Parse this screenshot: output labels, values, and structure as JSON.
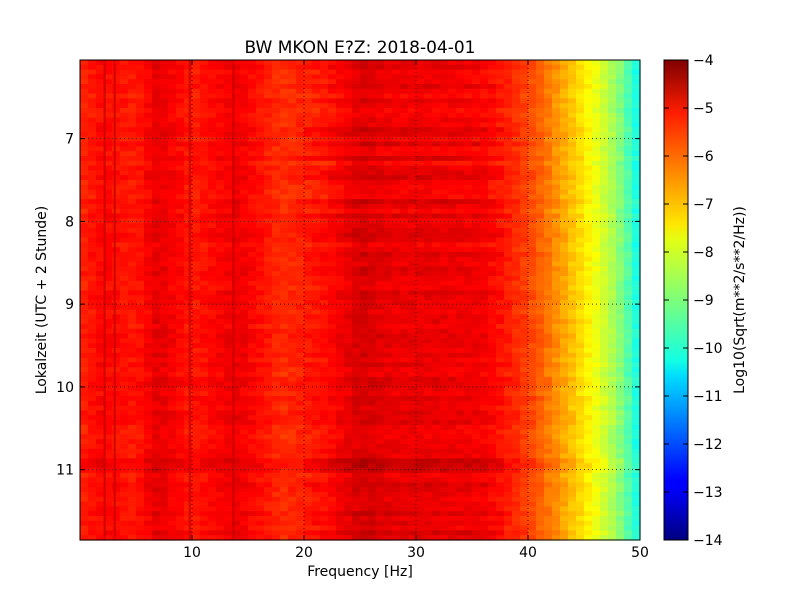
{
  "chart_data": {
    "type": "heatmap",
    "title": "BW MKON E?Z: 2018-04-01",
    "xlabel": "Frequency [Hz]",
    "ylabel": "Lokalzeit (UTC + 2 Stunde)",
    "xlim": [
      0,
      50
    ],
    "ylim": [
      11.85,
      6.05
    ],
    "y_inverted": true,
    "x_ticks": [
      10,
      20,
      30,
      40,
      50
    ],
    "x_tick_labels": [
      "10",
      "20",
      "30",
      "40",
      "50"
    ],
    "y_ticks": [
      7,
      8,
      9,
      10,
      11
    ],
    "y_tick_labels": [
      "7",
      "8",
      "9",
      "10",
      "11"
    ],
    "grid": true,
    "colormap": "jet",
    "colorbar": {
      "label": "Log10(Sqrt(m**2/s**2/Hz))",
      "range": [
        -14,
        -4
      ],
      "ticks": [
        -4,
        -5,
        -6,
        -7,
        -8,
        -9,
        -10,
        -11,
        -12,
        -13,
        -14
      ],
      "tick_labels": [
        "−4",
        "−5",
        "−6",
        "−7",
        "−8",
        "−9",
        "−10",
        "−11",
        "−12",
        "−13",
        "−14"
      ]
    },
    "frequency_profile_hz": [
      0,
      2,
      5,
      7,
      10,
      14,
      18,
      22,
      25,
      28,
      32,
      36,
      38,
      40,
      42,
      44,
      46,
      48,
      50
    ],
    "frequency_profile_value": [
      -5.6,
      -5.3,
      -5.5,
      -5.0,
      -5.5,
      -5.1,
      -5.7,
      -5.4,
      -4.9,
      -5.1,
      -5.1,
      -5.2,
      -5.5,
      -5.9,
      -6.5,
      -7.2,
      -7.9,
      -8.8,
      -10.2
    ],
    "dark_lines_hz": [
      2.2,
      3.1,
      9.8,
      13.7
    ]
  }
}
